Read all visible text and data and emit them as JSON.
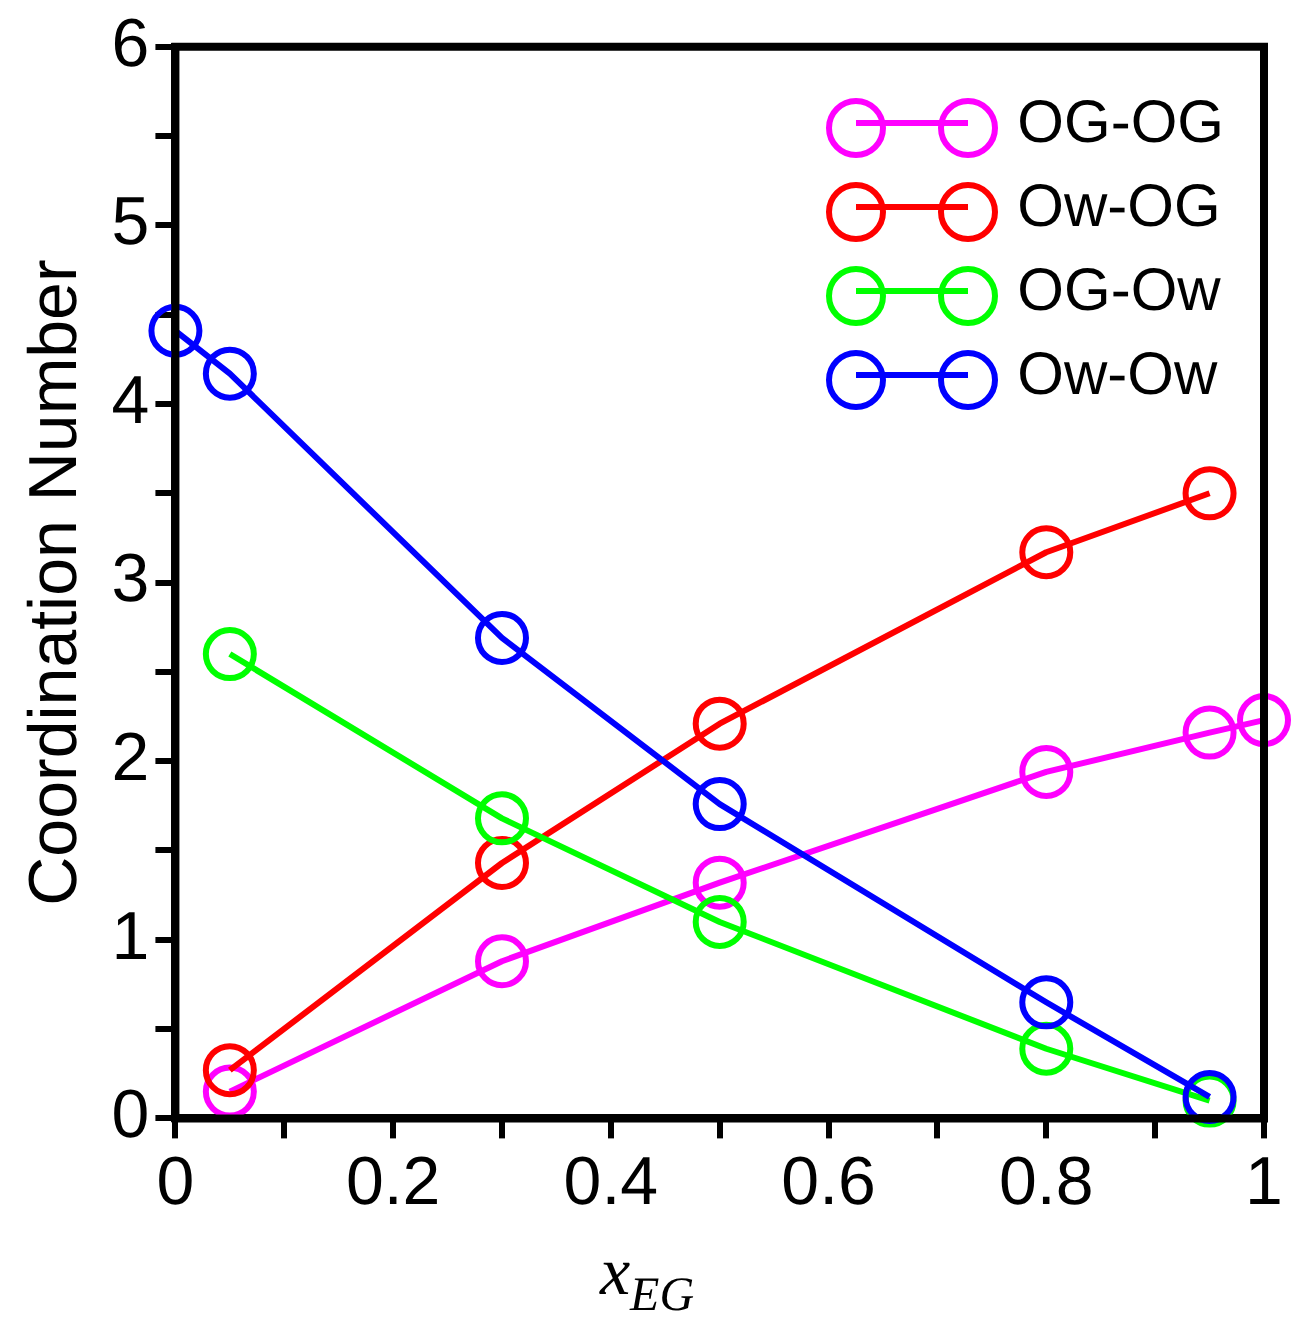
{
  "chart_data": {
    "type": "line",
    "xlabel": "x$_{EG}$",
    "ylabel": "Coordination Number",
    "xlim": [
      0,
      1
    ],
    "ylim": [
      0,
      6
    ],
    "xticks": [
      0,
      {
        "value": 0.1,
        "label": null
      },
      0.2,
      {
        "value": 0.3,
        "label": null
      },
      0.4,
      {
        "value": 0.5,
        "label": null
      },
      0.6,
      {
        "value": 0.7,
        "label": null
      },
      0.8,
      {
        "value": 0.9,
        "label": null
      },
      1
    ],
    "yticks": [
      0,
      {
        "value": 0.5,
        "label": null
      },
      1,
      {
        "value": 1.5,
        "label": null
      },
      2,
      {
        "value": 2.5,
        "label": null
      },
      3,
      {
        "value": 3.5,
        "label": null
      },
      4,
      {
        "value": 4.5,
        "label": null
      },
      5,
      {
        "value": 5.5,
        "label": null
      },
      6
    ],
    "grid": false,
    "legend": "top right",
    "marker": "circle",
    "line_style": "solid",
    "series": [
      {
        "name": "OG-OG",
        "color": "#ff00ff",
        "x": [
          0.05,
          0.3,
          0.5,
          0.8,
          0.95,
          1
        ],
        "values": [
          0.15,
          0.88,
          1.32,
          1.94,
          2.16,
          2.23
        ]
      },
      {
        "name": "Ow-OG",
        "color": "#ff0000",
        "x": [
          0.05,
          0.3,
          0.5,
          0.8,
          0.95
        ],
        "values": [
          0.27,
          1.43,
          2.21,
          3.17,
          3.5
        ]
      },
      {
        "name": "OG-Ow",
        "color": "#00ff00",
        "x": [
          0.05,
          0.3,
          0.5,
          0.8,
          0.95
        ],
        "values": [
          2.6,
          1.68,
          1.1,
          0.39,
          0.1
        ]
      },
      {
        "name": "Ow-Ow",
        "color": "#0000ff",
        "x": [
          0,
          0.05,
          0.3,
          0.5,
          0.8,
          0.95
        ],
        "values": [
          4.41,
          4.17,
          2.69,
          1.76,
          0.65,
          0.12
        ]
      }
    ]
  }
}
